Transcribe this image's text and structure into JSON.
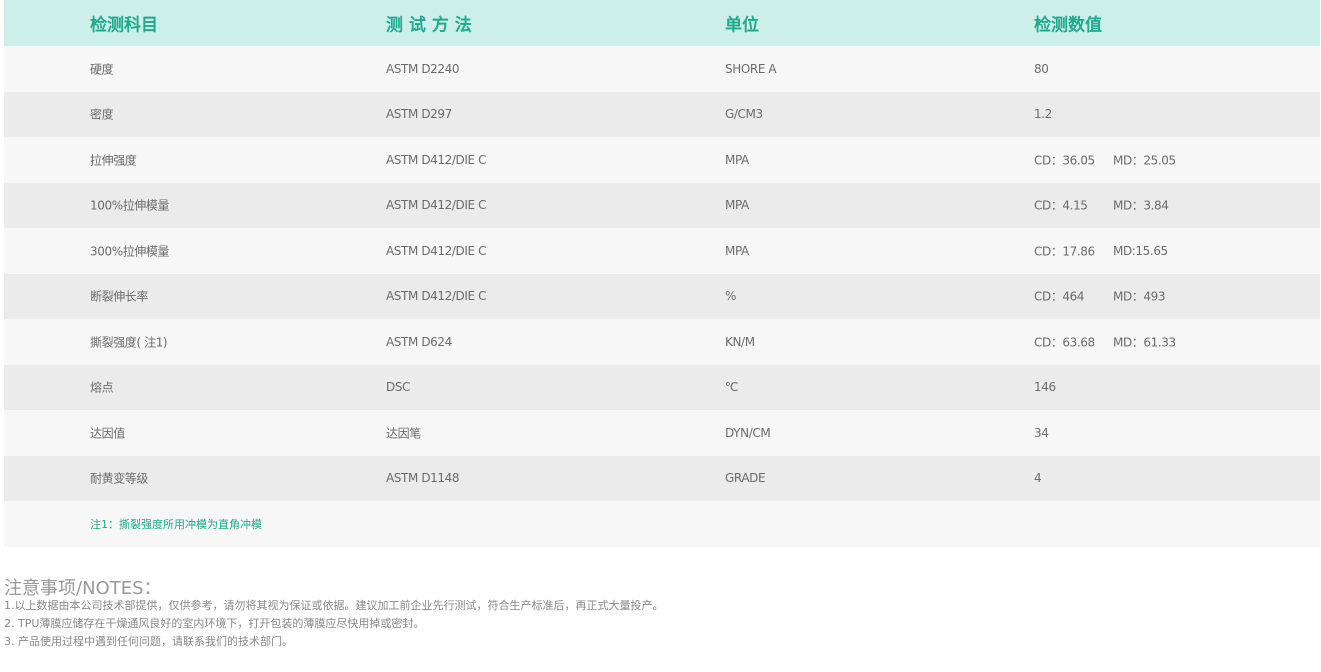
{
  "table": {
    "headers": [
      "检测科目",
      "测 试 方 法",
      "单位",
      "检测数值"
    ],
    "rows": [
      {
        "item": "硬度",
        "method": "ASTM D2240",
        "unit": "SHORE A",
        "cd": "80",
        "md": ""
      },
      {
        "item": "密度",
        "method": "ASTM D297",
        "unit": "G/CM3",
        "cd": "1.2",
        "md": ""
      },
      {
        "item": "拉伸强度",
        "method": "ASTM D412/DIE C",
        "unit": "MPA",
        "cd": "CD：36.05",
        "md": "MD：25.05"
      },
      {
        "item": "100%拉伸模量",
        "method": "ASTM D412/DIE C",
        "unit": "MPA",
        "cd": "CD：4.15",
        "md": "MD：3.84"
      },
      {
        "item": "300%拉伸模量",
        "method": "ASTM D412/DIE C",
        "unit": "MPA",
        "cd": "CD：17.86",
        "md": "MD:15.65"
      },
      {
        "item": "断裂伸长率",
        "method": "ASTM D412/DIE C",
        "unit": "%",
        "cd": "CD：464",
        "md": "MD：493"
      },
      {
        "item": "撕裂强度( 注1)",
        "method": "ASTM D624",
        "unit": "KN/M",
        "cd": "CD：63.68",
        "md": "MD：61.33"
      },
      {
        "item": "熔点",
        "method": "DSC",
        "unit": "℃",
        "cd": "146",
        "md": ""
      },
      {
        "item": "达因值",
        "method": "达因笔",
        "unit": "DYN/CM",
        "cd": "34",
        "md": ""
      },
      {
        "item": "耐黄变等级",
        "method": "ASTM D1148",
        "unit": "GRADE",
        "cd": "4",
        "md": ""
      }
    ],
    "footnote": "注1：撕裂强度所用冲模为直角冲模"
  },
  "notes": {
    "title": "注意事项/NOTES：",
    "lines": [
      "1.以上数据由本公司技术部提供，仅供参考，请勿将其视为保证或依据。建议加工前企业先行测试，符合生产标准后，再正式大量投产。",
      "2. TPU薄膜应储存在干燥通风良好的室内环境下，打开包装的薄膜应尽快用掉或密封。",
      "3. 产品使用过程中遇到任何问题，请联系我们的技术部门。"
    ]
  },
  "colors": {
    "accent": "#1fa98e",
    "header_bg": "#ccefe9"
  }
}
